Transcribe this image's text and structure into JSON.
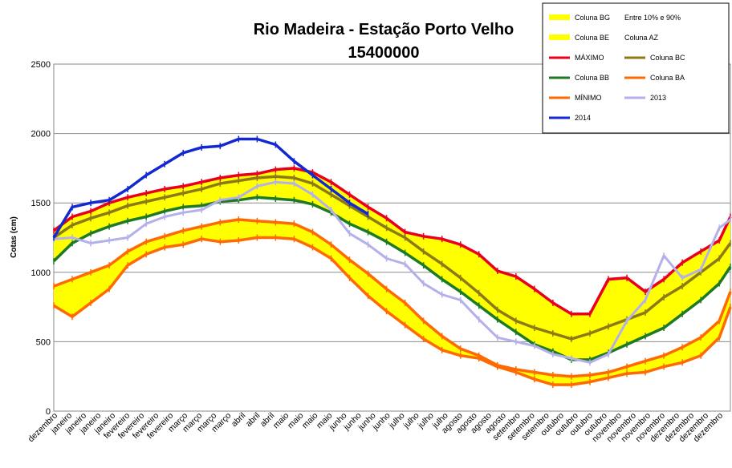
{
  "chart_data": {
    "type": "line",
    "title": "Rio Madeira - Estação Porto Velho",
    "subtitle": "15400000",
    "ylabel": "Cotas (cm)",
    "xlabel": "",
    "ylim": [
      0,
      2500
    ],
    "yticks": [
      0,
      500,
      1000,
      1500,
      2000,
      2500
    ],
    "grid": true,
    "legend_position": "top-right",
    "x_tick_labels": [
      "dezembro",
      "janeiro",
      "janeiro",
      "janeiro",
      "janeiro",
      "fevereiro",
      "fevereiro",
      "fevereiro",
      "fevereiro",
      "março",
      "março",
      "março",
      "março",
      "abril",
      "abril",
      "abril",
      "maio",
      "maio",
      "maio",
      "maio",
      "junho",
      "junho",
      "junho",
      "junho",
      "julho",
      "julho",
      "julho",
      "julho",
      "agosto",
      "agosto",
      "agosto",
      "agosto",
      "setembro",
      "setembro",
      "setembro",
      "outubro",
      "outubro",
      "outubro",
      "outubro",
      "novembro",
      "novembro",
      "novembro",
      "novembro",
      "dezembro",
      "dezembro",
      "dezembro",
      "dezembro"
    ],
    "legend": [
      {
        "label": "Coluna BG",
        "color": "#ffff00",
        "kind": "area"
      },
      {
        "label": "Entre 10% e 90%",
        "color": "#ffffff",
        "kind": "none"
      },
      {
        "label": "Coluna BE",
        "color": "#ffff00",
        "kind": "area"
      },
      {
        "label": "Coluna AZ",
        "color": "#ffffff",
        "kind": "none"
      },
      {
        "label": "MÁXIMO",
        "color": "#e8001c",
        "kind": "line"
      },
      {
        "label": "Coluna BC",
        "color": "#8c7a16",
        "kind": "line"
      },
      {
        "label": "Coluna BB",
        "color": "#1e7a22",
        "kind": "line"
      },
      {
        "label": "Coluna BA",
        "color": "#ff6a00",
        "kind": "line"
      },
      {
        "label": "MÍNIMO",
        "color": "#ff6a00",
        "kind": "line"
      },
      {
        "label": "2013",
        "color": "#b4b0ea",
        "kind": "line"
      },
      {
        "label": "2014",
        "color": "#1428d2",
        "kind": "line"
      }
    ],
    "x_days": [
      0,
      10,
      20,
      30,
      40,
      50,
      60,
      70,
      80,
      90,
      100,
      110,
      120,
      130,
      140,
      150,
      160,
      170,
      180,
      190,
      200,
      210,
      220,
      230,
      240,
      250,
      260,
      270,
      280,
      290,
      300,
      310,
      320,
      330,
      340,
      350,
      360,
      366
    ],
    "series": [
      {
        "name": "MÁXIMO",
        "color": "#e8001c",
        "values": [
          1300,
          1400,
          1440,
          1500,
          1540,
          1570,
          1600,
          1620,
          1650,
          1680,
          1700,
          1710,
          1740,
          1750,
          1720,
          1650,
          1560,
          1470,
          1390,
          1290,
          1260,
          1240,
          1200,
          1130,
          1010,
          970,
          880,
          780,
          700,
          700,
          950,
          960,
          860,
          950,
          1070,
          1150,
          1230,
          1400
        ]
      },
      {
        "name": "Coluna BC",
        "color": "#8c7a16",
        "values": [
          1250,
          1340,
          1390,
          1430,
          1480,
          1510,
          1540,
          1570,
          1600,
          1640,
          1660,
          1680,
          1690,
          1680,
          1640,
          1560,
          1480,
          1400,
          1320,
          1250,
          1150,
          1060,
          960,
          850,
          730,
          650,
          600,
          560,
          520,
          560,
          610,
          660,
          710,
          820,
          900,
          1000,
          1100,
          1210
        ]
      },
      {
        "name": "Coluna BB",
        "color": "#1e7a22",
        "values": [
          1080,
          1210,
          1280,
          1330,
          1370,
          1400,
          1440,
          1470,
          1480,
          1510,
          1520,
          1540,
          1530,
          1520,
          1490,
          1430,
          1350,
          1290,
          1220,
          1140,
          1050,
          950,
          860,
          760,
          660,
          570,
          480,
          430,
          370,
          370,
          420,
          480,
          540,
          600,
          700,
          800,
          920,
          1040
        ]
      },
      {
        "name": "Coluna BA",
        "color": "#ff6a00",
        "values": [
          900,
          950,
          1000,
          1050,
          1150,
          1220,
          1260,
          1300,
          1330,
          1360,
          1380,
          1370,
          1360,
          1350,
          1290,
          1200,
          1090,
          990,
          880,
          780,
          650,
          540,
          450,
          400,
          330,
          300,
          280,
          260,
          250,
          260,
          280,
          320,
          360,
          400,
          460,
          530,
          650,
          860
        ]
      },
      {
        "name": "MÍNIMO",
        "color": "#ff6a00",
        "values": [
          760,
          680,
          780,
          880,
          1050,
          1130,
          1180,
          1200,
          1240,
          1220,
          1230,
          1250,
          1250,
          1240,
          1180,
          1100,
          960,
          830,
          720,
          620,
          520,
          440,
          400,
          380,
          320,
          280,
          230,
          190,
          190,
          210,
          240,
          270,
          280,
          320,
          350,
          400,
          530,
          750
        ]
      },
      {
        "name": "2013",
        "color": "#b4b0ea",
        "values": [
          1240,
          1250,
          1210,
          1230,
          1250,
          1350,
          1400,
          1430,
          1450,
          1520,
          1540,
          1620,
          1650,
          1640,
          1560,
          1450,
          1280,
          1200,
          1100,
          1060,
          920,
          840,
          800,
          660,
          530,
          500,
          470,
          410,
          380,
          350,
          410,
          650,
          800,
          1120,
          960,
          1020,
          1320,
          1380
        ]
      },
      {
        "name": "2014",
        "color": "#1428d2",
        "values": [
          1250,
          1470,
          1500,
          1520,
          1600,
          1700,
          1780,
          1860,
          1900,
          1910,
          1960,
          1960,
          1920,
          1800,
          1700,
          1600,
          1500,
          1420
        ]
      }
    ],
    "bands": [
      {
        "name": "Entre 10% e 90%",
        "color": "#ffff00",
        "upper": "Coluna BC",
        "lower": "Coluna BB"
      },
      {
        "name": "Entre 10% e 90%",
        "color": "#ffff00",
        "upper": "Coluna BA",
        "lower": "MÍNIMO"
      },
      {
        "name": "Entre 10% e 90%",
        "color": "#ffff00",
        "upper": "MÁXIMO",
        "lower": "Coluna BC"
      }
    ]
  }
}
